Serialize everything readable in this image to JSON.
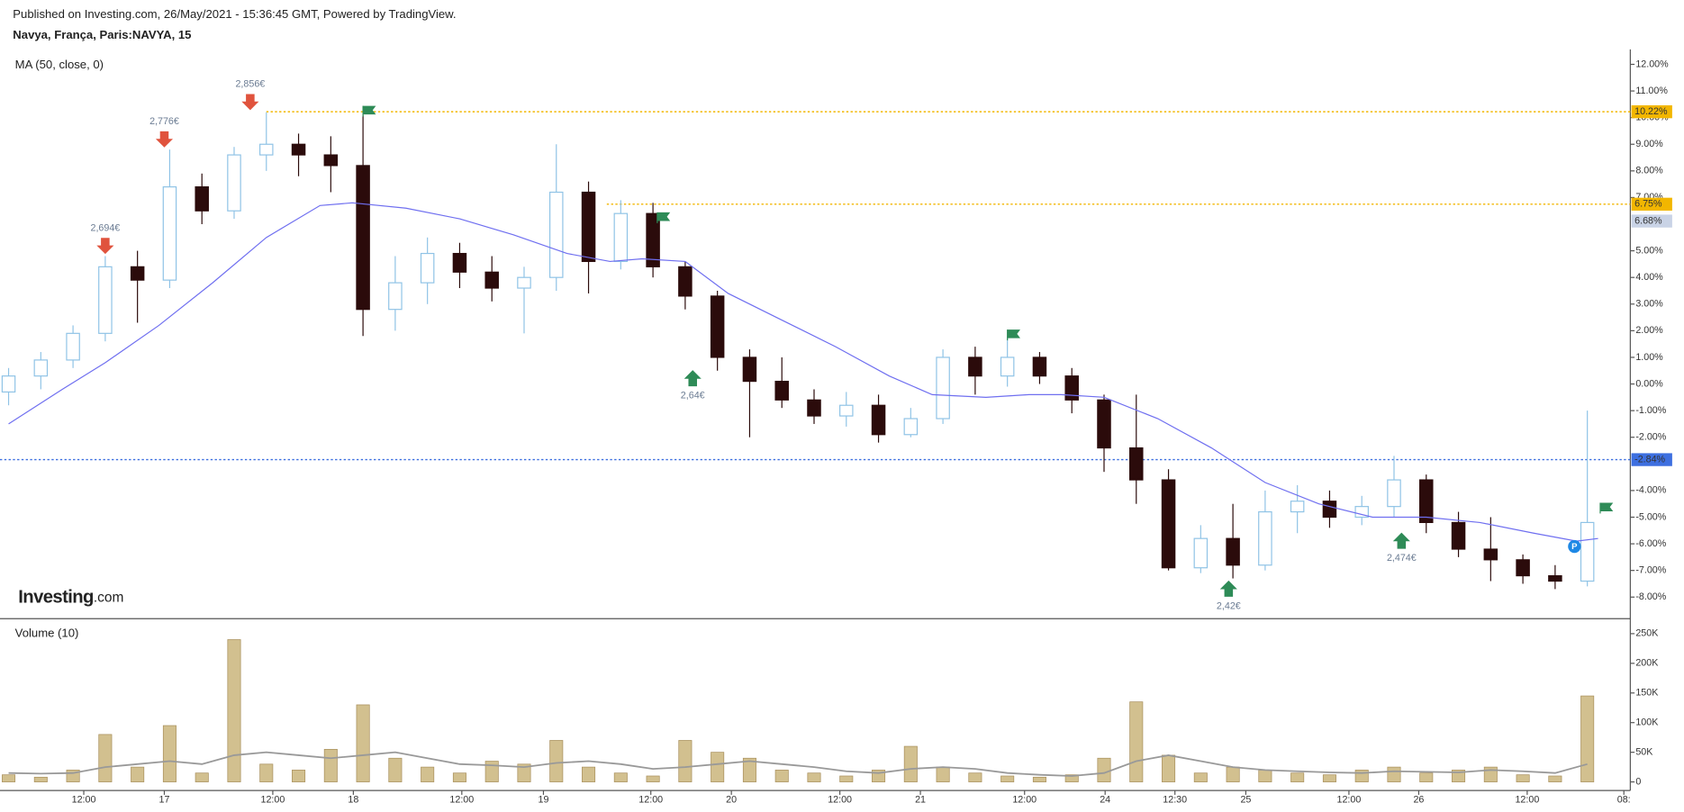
{
  "header": {
    "published": "Published on Investing.com, 26/May/2021 - 15:36:45 GMT, Powered by TradingView.",
    "symbol": "Navya, França, Paris:NAVYA, 15",
    "logo_main": "Investing",
    "logo_suffix": ".com"
  },
  "chart_data": [
    {
      "type": "candlestick",
      "legend": "MA (50, close, 0)",
      "up_color": "#ffffff",
      "up_border": "#8fc3e6",
      "down_color": "#2b0b0b",
      "xlim": [
        -1.6,
        302
      ],
      "ylim": [
        -8.77,
        12.48
      ],
      "xticks": [
        {
          "value": 14,
          "label": "12:00"
        },
        {
          "value": 29,
          "label": "17"
        },
        {
          "value": 49.2,
          "label": "12:00"
        },
        {
          "value": 64.2,
          "label": "18"
        },
        {
          "value": 84.4,
          "label": "12:00"
        },
        {
          "value": 99.6,
          "label": "19"
        },
        {
          "value": 119.6,
          "label": "12:00"
        },
        {
          "value": 134.6,
          "label": "20"
        },
        {
          "value": 154.8,
          "label": "12:00"
        },
        {
          "value": 169.8,
          "label": "21"
        },
        {
          "value": 189.2,
          "label": "12:00"
        },
        {
          "value": 204.2,
          "label": "24"
        },
        {
          "value": 217.2,
          "label": "12:30"
        },
        {
          "value": 230.4,
          "label": "25"
        },
        {
          "value": 249.6,
          "label": "12:00"
        },
        {
          "value": 262.6,
          "label": "26"
        },
        {
          "value": 282.8,
          "label": "12:00"
        },
        {
          "value": 300.8,
          "label": "08:"
        }
      ],
      "yticks": [
        {
          "value": 12,
          "label": "12.00%"
        },
        {
          "value": 11,
          "label": "11.00%"
        },
        {
          "value": 10,
          "label": "10.00%"
        },
        {
          "value": 9,
          "label": "9.00%"
        },
        {
          "value": 8,
          "label": "8.00%"
        },
        {
          "value": 7,
          "label": "7.00%"
        },
        {
          "value": 5,
          "label": "5.00%"
        },
        {
          "value": 4,
          "label": "4.00%"
        },
        {
          "value": 3,
          "label": "3.00%"
        },
        {
          "value": 2,
          "label": "2.00%"
        },
        {
          "value": 1,
          "label": "1.00%"
        },
        {
          "value": 0,
          "label": "0.00%"
        },
        {
          "value": -1,
          "label": "-1.00%"
        },
        {
          "value": -2,
          "label": "-2.00%"
        },
        {
          "value": -4,
          "label": "-4.00%"
        },
        {
          "value": -5,
          "label": "-5.00%"
        },
        {
          "value": -6,
          "label": "-6.00%"
        },
        {
          "value": -7,
          "label": "-7.00%"
        },
        {
          "value": -8,
          "label": "-8.00%"
        }
      ],
      "x": [
        0,
        6,
        12,
        18,
        24,
        30,
        36,
        42,
        48,
        54,
        60,
        66,
        72,
        78,
        84,
        90,
        96,
        102,
        108,
        114,
        120,
        126,
        132,
        138,
        144,
        150,
        156,
        162,
        168,
        174,
        180,
        186,
        192,
        198,
        204,
        210,
        216,
        222,
        228,
        234,
        240,
        246,
        252,
        258,
        264,
        270,
        276,
        282,
        288,
        294
      ],
      "open": [
        -0.3,
        0.3,
        0.9,
        1.9,
        4.4,
        3.9,
        7.4,
        6.5,
        8.6,
        9.0,
        8.6,
        8.2,
        2.8,
        3.8,
        4.9,
        4.2,
        3.6,
        4.0,
        7.2,
        4.6,
        6.4,
        4.4,
        3.3,
        1.0,
        0.1,
        -0.6,
        -1.2,
        -0.8,
        -1.9,
        -1.3,
        1.0,
        0.3,
        1.0,
        0.3,
        -0.6,
        -2.4,
        -3.6,
        -6.9,
        -5.8,
        -6.8,
        -4.8,
        -4.4,
        -5.0,
        -4.6,
        -3.6,
        -5.2,
        -6.2,
        -6.6,
        -7.2,
        -7.4
      ],
      "high": [
        0.6,
        1.2,
        2.2,
        4.8,
        5.0,
        8.8,
        7.9,
        8.9,
        10.2,
        9.4,
        9.3,
        10.1,
        4.8,
        5.5,
        5.3,
        4.8,
        4.4,
        9.0,
        7.6,
        6.9,
        6.8,
        4.6,
        3.5,
        1.3,
        1.0,
        -0.2,
        -0.3,
        -0.4,
        -0.9,
        1.3,
        1.4,
        1.8,
        1.2,
        0.6,
        -0.4,
        -0.4,
        -3.2,
        -5.3,
        -4.5,
        -4.0,
        -3.8,
        -4.0,
        -4.2,
        -2.7,
        -3.4,
        -4.8,
        -5.0,
        -6.4,
        -6.8,
        -1.0
      ],
      "low": [
        -0.8,
        -0.2,
        0.6,
        1.6,
        2.3,
        3.6,
        6.0,
        6.2,
        8.0,
        7.8,
        7.2,
        1.8,
        2.0,
        3.0,
        3.6,
        3.1,
        1.9,
        3.5,
        3.4,
        4.3,
        4.0,
        2.8,
        0.5,
        -2.0,
        -0.9,
        -1.5,
        -1.6,
        -2.2,
        -2.0,
        -1.5,
        -0.4,
        -0.1,
        0.0,
        -1.1,
        -3.3,
        -4.5,
        -7.0,
        -7.1,
        -7.3,
        -7.0,
        -5.6,
        -5.4,
        -5.3,
        -5.0,
        -5.6,
        -6.5,
        -7.4,
        -7.5,
        -7.7,
        -7.6
      ],
      "close": [
        0.3,
        0.9,
        1.9,
        4.4,
        3.9,
        7.4,
        6.5,
        8.6,
        9.0,
        8.6,
        8.2,
        2.8,
        3.8,
        4.9,
        4.2,
        3.6,
        4.0,
        7.2,
        4.6,
        6.4,
        4.4,
        3.3,
        1.0,
        0.1,
        -0.6,
        -1.2,
        -0.8,
        -1.9,
        -1.3,
        1.0,
        0.3,
        1.0,
        0.3,
        -0.6,
        -2.4,
        -3.6,
        -6.9,
        -5.8,
        -6.8,
        -4.8,
        -4.4,
        -5.0,
        -4.6,
        -3.6,
        -5.2,
        -6.2,
        -6.6,
        -7.2,
        -7.4,
        -5.2
      ],
      "ma": {
        "color": "#6f6ff0",
        "x": [
          0,
          10,
          18,
          28,
          38,
          48,
          58,
          64,
          74,
          84,
          94,
          104,
          112,
          118,
          126,
          134,
          144,
          154,
          164,
          172,
          182,
          190,
          196,
          204,
          214,
          224,
          234,
          244,
          254,
          264,
          274,
          284,
          292,
          296
        ],
        "values": [
          -1.5,
          -0.2,
          0.8,
          2.2,
          3.8,
          5.5,
          6.7,
          6.8,
          6.6,
          6.2,
          5.6,
          4.9,
          4.6,
          4.7,
          4.6,
          3.4,
          2.4,
          1.4,
          0.3,
          -0.4,
          -0.5,
          -0.4,
          -0.4,
          -0.5,
          -1.3,
          -2.4,
          -3.7,
          -4.5,
          -5.0,
          -5.0,
          -5.2,
          -5.6,
          -5.9,
          -5.8
        ]
      },
      "levels": [
        {
          "value": 10.22,
          "label": "10.22%",
          "color": "#f2b600",
          "x0": 48,
          "line": true
        },
        {
          "value": 6.75,
          "label": "6.75%",
          "color": "#f2b600",
          "x0": 111.4,
          "line": true
        },
        {
          "value": 6.68,
          "label": "6.68%",
          "color": "#c9d3e6",
          "x0": 111.4,
          "line": false
        },
        {
          "value": -2.84,
          "label": "-2.84%",
          "color": "#3d6fe0",
          "x0": -1.6,
          "line": true
        }
      ],
      "arrows": [
        {
          "label": "2,694€",
          "x": 18,
          "y": 4.8,
          "dir": "down",
          "color": "#e0533d"
        },
        {
          "label": "2,776€",
          "x": 29,
          "y": 8.8,
          "dir": "down",
          "color": "#e0533d"
        },
        {
          "label": "2,856€",
          "x": 45,
          "y": 10.2,
          "dir": "down",
          "color": "#e0533d"
        },
        {
          "label": "2,64€",
          "x": 127.4,
          "y": 0.6,
          "dir": "up",
          "color": "#2e8b57"
        },
        {
          "label": "2,42€",
          "x": 227.2,
          "y": -7.3,
          "dir": "up",
          "color": "#2e8b57"
        },
        {
          "label": "2,474€",
          "x": 259.4,
          "y": -5.5,
          "dir": "up",
          "color": "#2e8b57"
        }
      ],
      "flags": {
        "color": "#2e8b57",
        "x": [
          66,
          120.8,
          186,
          296.4
        ],
        "y": [
          10.2,
          6.2,
          1.8,
          -4.7
        ]
      },
      "marker": {
        "text": "P",
        "x": 291.6,
        "y": -6.1,
        "color": "#1e88e5"
      }
    },
    {
      "type": "volume",
      "legend": "Volume (10)",
      "color": "#d2c08f",
      "border": "#a88f5c",
      "xlim": [
        -1.6,
        302
      ],
      "ylim": [
        -12700,
        271700
      ],
      "yticks": [
        {
          "value": 250000,
          "label": "250K"
        },
        {
          "value": 200000,
          "label": "200K"
        },
        {
          "value": 150000,
          "label": "150K"
        },
        {
          "value": 100000,
          "label": "100K"
        },
        {
          "value": 50000,
          "label": "50K"
        },
        0
      ],
      "x": [
        0,
        6,
        12,
        18,
        24,
        30,
        36,
        42,
        48,
        54,
        60,
        66,
        72,
        78,
        84,
        90,
        96,
        102,
        108,
        114,
        120,
        126,
        132,
        138,
        144,
        150,
        156,
        162,
        168,
        174,
        180,
        186,
        192,
        198,
        204,
        210,
        216,
        222,
        228,
        234,
        240,
        246,
        252,
        258,
        264,
        270,
        276,
        282,
        288,
        294
      ],
      "values": [
        12000,
        8000,
        20000,
        80000,
        25000,
        95000,
        15000,
        240000,
        30000,
        20000,
        55000,
        130000,
        40000,
        25000,
        15000,
        35000,
        30000,
        70000,
        25000,
        15000,
        10000,
        70000,
        50000,
        40000,
        20000,
        15000,
        10000,
        20000,
        60000,
        25000,
        15000,
        10000,
        8000,
        12000,
        40000,
        135000,
        45000,
        15000,
        25000,
        20000,
        15000,
        12000,
        20000,
        25000,
        15000,
        20000,
        25000,
        12000,
        10000,
        145000
      ],
      "ma": {
        "color": "#999999",
        "values": [
          15000,
          14000,
          15000,
          25000,
          30000,
          35000,
          30000,
          45000,
          50000,
          45000,
          40000,
          45000,
          50000,
          40000,
          30000,
          28000,
          25000,
          32000,
          35000,
          30000,
          22000,
          25000,
          30000,
          35000,
          30000,
          25000,
          18000,
          15000,
          22000,
          25000,
          22000,
          15000,
          12000,
          10000,
          15000,
          35000,
          45000,
          35000,
          25000,
          20000,
          18000,
          16000,
          15000,
          18000,
          17000,
          16000,
          20000,
          18000,
          15000,
          30000
        ]
      }
    }
  ]
}
